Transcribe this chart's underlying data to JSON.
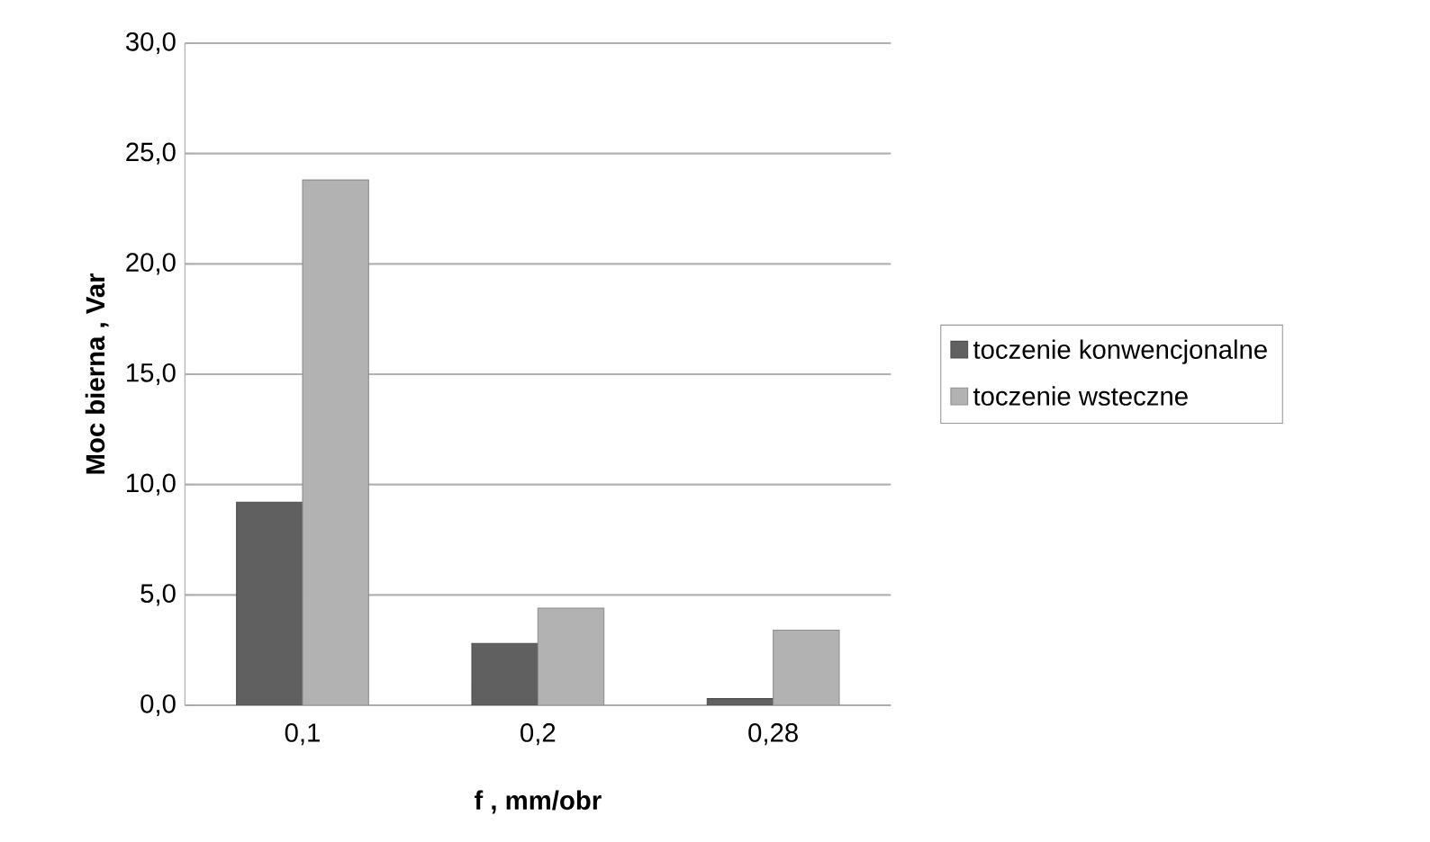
{
  "chart_data": {
    "type": "bar",
    "xlabel": "f , mm/obr",
    "ylabel": "Moc bierna , Var",
    "categories": [
      "0,1",
      "0,2",
      "0,28"
    ],
    "series": [
      {
        "name": "toczenie konwencjonalne",
        "color": "#606060",
        "values": [
          9.2,
          2.8,
          0.3
        ]
      },
      {
        "name": "toczenie wsteczne",
        "color": "#b2b2b2",
        "values": [
          23.8,
          4.4,
          3.4
        ]
      }
    ],
    "ylim": [
      0,
      30
    ],
    "yticks": [
      {
        "value": 0,
        "label": "0,0"
      },
      {
        "value": 5,
        "label": "5,0"
      },
      {
        "value": 10,
        "label": "10,0"
      },
      {
        "value": 15,
        "label": "15,0"
      },
      {
        "value": 20,
        "label": "20,0"
      },
      {
        "value": 25,
        "label": "25,0"
      },
      {
        "value": 30,
        "label": "30,0"
      }
    ],
    "grid": "y",
    "legend": "right"
  }
}
